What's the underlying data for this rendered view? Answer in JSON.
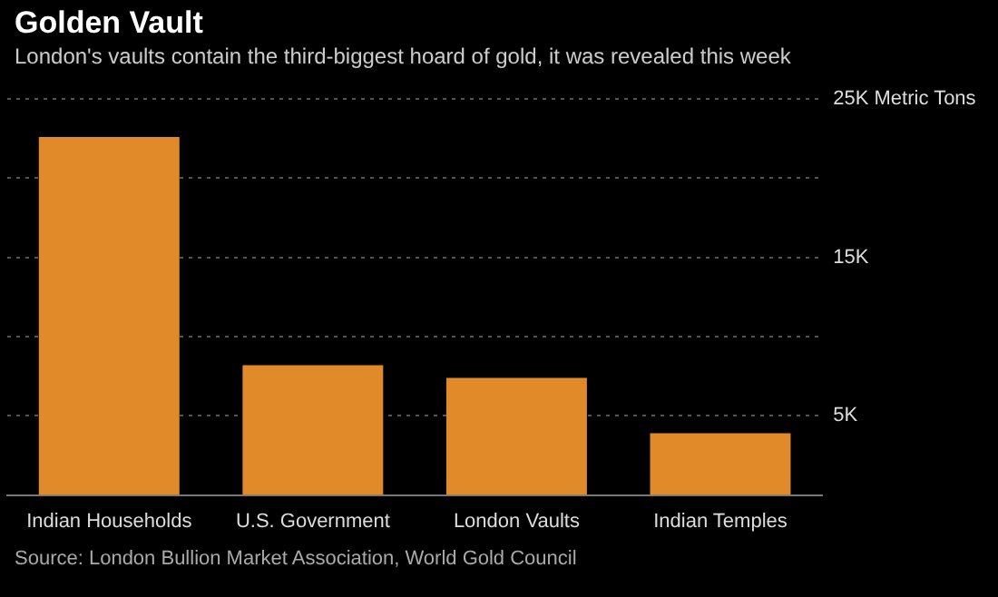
{
  "chart_data": {
    "type": "bar",
    "title": "Golden Vault",
    "subtitle": "London's vaults contain the third-biggest hoard of gold, it was revealed this week",
    "categories": [
      "Indian Households",
      "U.S. Government",
      "London Vaults",
      "Indian Temples"
    ],
    "values": [
      22600,
      8200,
      7400,
      3900
    ],
    "color": "#e08a2a",
    "ylim": [
      0,
      25000
    ],
    "yticks": [
      {
        "value": 5000,
        "label": "5K"
      },
      {
        "value": 10000,
        "label": null
      },
      {
        "value": 15000,
        "label": "15K"
      },
      {
        "value": 20000,
        "label": null
      },
      {
        "value": 25000,
        "label": "25K Metric Tons"
      }
    ],
    "grid": "y",
    "annotations": [
      "Source: London Bullion Market Association, World Gold Council"
    ]
  }
}
